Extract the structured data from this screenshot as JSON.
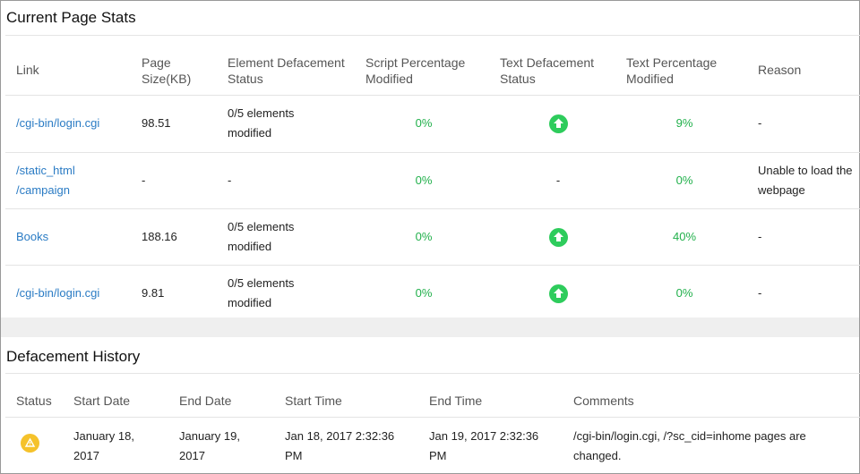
{
  "stats": {
    "title": "Current Page Stats",
    "headers": [
      "Link",
      "Page Size(KB)",
      "Element Defacement Status",
      "Script Percentage Modified",
      "Text Defacement Status",
      "Text Percentage Modified",
      "Reason"
    ],
    "rows": [
      {
        "link": "/cgi-bin/login.cgi",
        "size": "98.51",
        "element": "0/5 elements modified",
        "script": "0%",
        "text_status": "up-arrow-icon",
        "text_pct": "9%",
        "reason": "-"
      },
      {
        "link": "/static_html /campaign",
        "size": "-",
        "element": "-",
        "script": "0%",
        "text_status": "-",
        "text_pct": "0%",
        "reason": "Unable to load the webpage"
      },
      {
        "link": "Books",
        "size": "188.16",
        "element": "0/5 elements modified",
        "script": "0%",
        "text_status": "up-arrow-icon",
        "text_pct": "40%",
        "reason": "-"
      },
      {
        "link": "/cgi-bin/login.cgi",
        "size": "9.81",
        "element": "0/5 elements modified",
        "script": "0%",
        "text_status": "up-arrow-icon",
        "text_pct": "0%",
        "reason": "-"
      }
    ]
  },
  "history": {
    "title": "Defacement History",
    "headers": [
      "Status",
      "Start Date",
      "End Date",
      "Start Time",
      "End Time",
      "Comments"
    ],
    "rows": [
      {
        "status": "warning-icon",
        "start_date": "January 18, 2017",
        "end_date": "January 19, 2017",
        "start_time": "Jan 18, 2017 2:32:36 PM",
        "end_time": "Jan 19, 2017 2:32:36 PM",
        "comments": "/cgi-bin/login.cgi, /?sc_cid=inhome pages are changed."
      }
    ]
  },
  "colors": {
    "link": "#2a7bc4",
    "success": "#21b04b",
    "ok_icon": "#2ecc5c",
    "warning": "#f5c22b"
  }
}
